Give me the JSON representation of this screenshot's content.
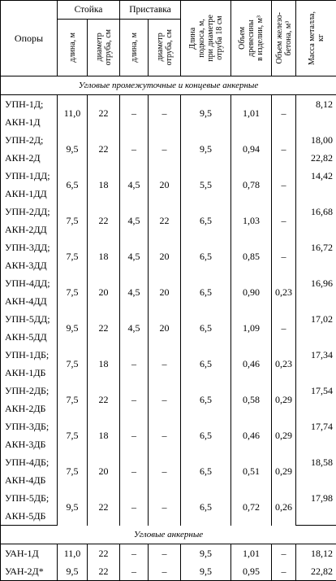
{
  "header": {
    "opory": "Опоры",
    "stoika": "Стойка",
    "pristavka": "Приставка",
    "dlina_m": "длина, м",
    "diametr": "диаметр\nотруба, см",
    "dlina_m2": "длина, м",
    "diametr2": "диаметр\nотруба, см",
    "dlina_podkosa": "Длина\nподкоса, м,\nпри диаметре\nотруба 18 см",
    "obem_drev": "Объем\nдревесины\nв изделии, м³",
    "obem_zhb": "Объем железо-\nбетона, м³",
    "massa": "Масса металла,\nкг"
  },
  "sections": [
    {
      "title": "Угловые промежуточные и концевые анкерные",
      "groups": [
        {
          "names": [
            "УПН-1Д;",
            "АКН-1Д"
          ],
          "stoika_l": "11,0",
          "stoika_d": "22",
          "prist_l": "–",
          "prist_d": "–",
          "podkos": "9,5",
          "drev": "1,01",
          "zhb": "–",
          "massa": [
            "8,12",
            ""
          ]
        },
        {
          "names": [
            "УПН-2Д;",
            "АКН-2Д"
          ],
          "stoika_l": "9,5",
          "stoika_d": "22",
          "prist_l": "–",
          "prist_d": "–",
          "podkos": "9,5",
          "drev": "0,94",
          "zhb": "–",
          "massa": [
            "18,00",
            "22,82"
          ]
        },
        {
          "names": [
            "УПН-1ДД;",
            "АКН-1ДД"
          ],
          "stoika_l": "6,5",
          "stoika_d": "18",
          "prist_l": "4,5",
          "prist_d": "20",
          "podkos": "5,5",
          "drev": "0,78",
          "zhb": "–",
          "massa": [
            "14,42",
            ""
          ]
        },
        {
          "names": [
            "УПН-2ДД;",
            "АКН-2ДД"
          ],
          "stoika_l": "7,5",
          "stoika_d": "22",
          "prist_l": "4,5",
          "prist_d": "22",
          "podkos": "6,5",
          "drev": "1,03",
          "zhb": "–",
          "massa": [
            "16,68",
            ""
          ]
        },
        {
          "names": [
            "УПН-3ДД;",
            "АКН-3ДД"
          ],
          "stoika_l": "7,5",
          "stoika_d": "18",
          "prist_l": "4,5",
          "prist_d": "20",
          "podkos": "6,5",
          "drev": "0,85",
          "zhb": "–",
          "massa": [
            "16,72",
            ""
          ]
        },
        {
          "names": [
            "УПН-4ДД;",
            "АКН-4ДД"
          ],
          "stoika_l": "7,5",
          "stoika_d": "20",
          "prist_l": "4,5",
          "prist_d": "20",
          "podkos": "6,5",
          "drev": "0,90",
          "zhb": "0,23",
          "massa": [
            "16,96",
            ""
          ]
        },
        {
          "names": [
            "УПН-5ДД;",
            "АКН-5ДД"
          ],
          "stoika_l": "9,5",
          "stoika_d": "22",
          "prist_l": "4,5",
          "prist_d": "20",
          "podkos": "6,5",
          "drev": "1,09",
          "zhb": "–",
          "massa": [
            "17,02",
            ""
          ]
        },
        {
          "names": [
            "УПН-1ДБ;",
            "АКН-1ДБ"
          ],
          "stoika_l": "7,5",
          "stoika_d": "18",
          "prist_l": "–",
          "prist_d": "–",
          "podkos": "6,5",
          "drev": "0,46",
          "zhb": "0,23",
          "massa": [
            "17,34",
            ""
          ]
        },
        {
          "names": [
            "УПН-2ДБ;",
            "АКН-2ДБ"
          ],
          "stoika_l": "7,5",
          "stoika_d": "22",
          "prist_l": "–",
          "prist_d": "–",
          "podkos": "6,5",
          "drev": "0,58",
          "zhb": "0,29",
          "massa": [
            "17,54",
            ""
          ]
        },
        {
          "names": [
            "УПН-3ДБ;",
            "АКН-3ДБ"
          ],
          "stoika_l": "7,5",
          "stoika_d": "18",
          "prist_l": "–",
          "prist_d": "–",
          "podkos": "6,5",
          "drev": "0,46",
          "zhb": "0,29",
          "massa": [
            "17,74",
            ""
          ]
        },
        {
          "names": [
            "УПН-4ДБ;",
            "АКН-4ДБ"
          ],
          "stoika_l": "7,5",
          "stoika_d": "20",
          "prist_l": "–",
          "prist_d": "–",
          "podkos": "6,5",
          "drev": "0,51",
          "zhb": "0,29",
          "massa": [
            "18,58",
            ""
          ]
        },
        {
          "names": [
            "УПН-5ДБ;",
            "АКН-5ДБ"
          ],
          "stoika_l": "9,5",
          "stoika_d": "22",
          "prist_l": "–",
          "prist_d": "–",
          "podkos": "6,5",
          "drev": "0,72",
          "zhb": "0,26",
          "massa": [
            "17,98",
            ""
          ]
        }
      ]
    },
    {
      "title": "Угловые анкерные",
      "groups": [
        {
          "names": [
            "УАН-1Д"
          ],
          "stoika_l": "11,0",
          "stoika_d": "22",
          "prist_l": "–",
          "prist_d": "–",
          "podkos": "9,5",
          "drev": "1,01",
          "zhb": "–",
          "massa": [
            "18,12"
          ]
        },
        {
          "names": [
            "УАН-2Д*"
          ],
          "stoika_l": "9,5",
          "stoika_d": "22",
          "prist_l": "–",
          "prist_d": "–",
          "podkos": "9,5",
          "drev": "0,95",
          "zhb": "–",
          "massa": [
            "22,82"
          ]
        }
      ]
    }
  ]
}
